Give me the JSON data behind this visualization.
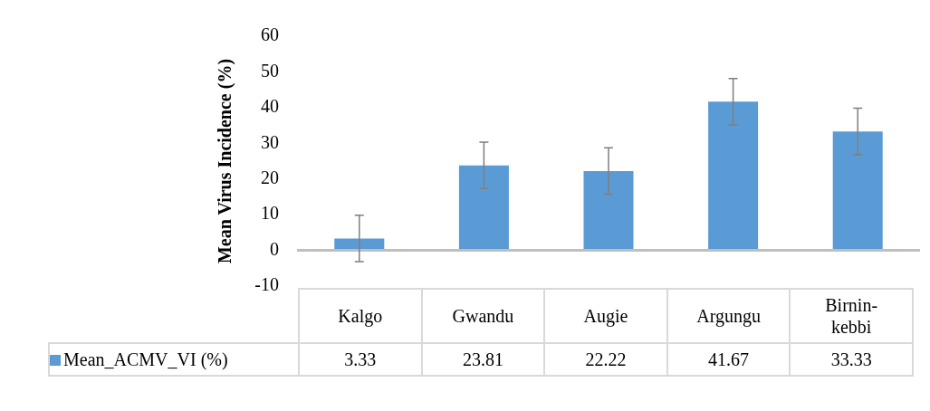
{
  "chart_data": {
    "type": "bar",
    "ylabel": "Mean Virus Incidence (%)",
    "categories": [
      "Kalgo",
      "Gwandu",
      "Augie",
      "Argungu",
      "Birnin-kebbi"
    ],
    "series": [
      {
        "name": "Mean_ACMV_VI (%)",
        "color": "#5b9bd5",
        "values": [
          3.33,
          23.81,
          22.22,
          41.67,
          33.33
        ],
        "errors": [
          6.5,
          6.5,
          6.5,
          6.5,
          6.5
        ]
      }
    ],
    "ylim": [
      -10,
      60
    ],
    "yticks": [
      -10,
      0,
      10,
      20,
      30,
      40,
      50,
      60
    ],
    "grid": false,
    "legend": "bottom",
    "data_labels": true
  }
}
